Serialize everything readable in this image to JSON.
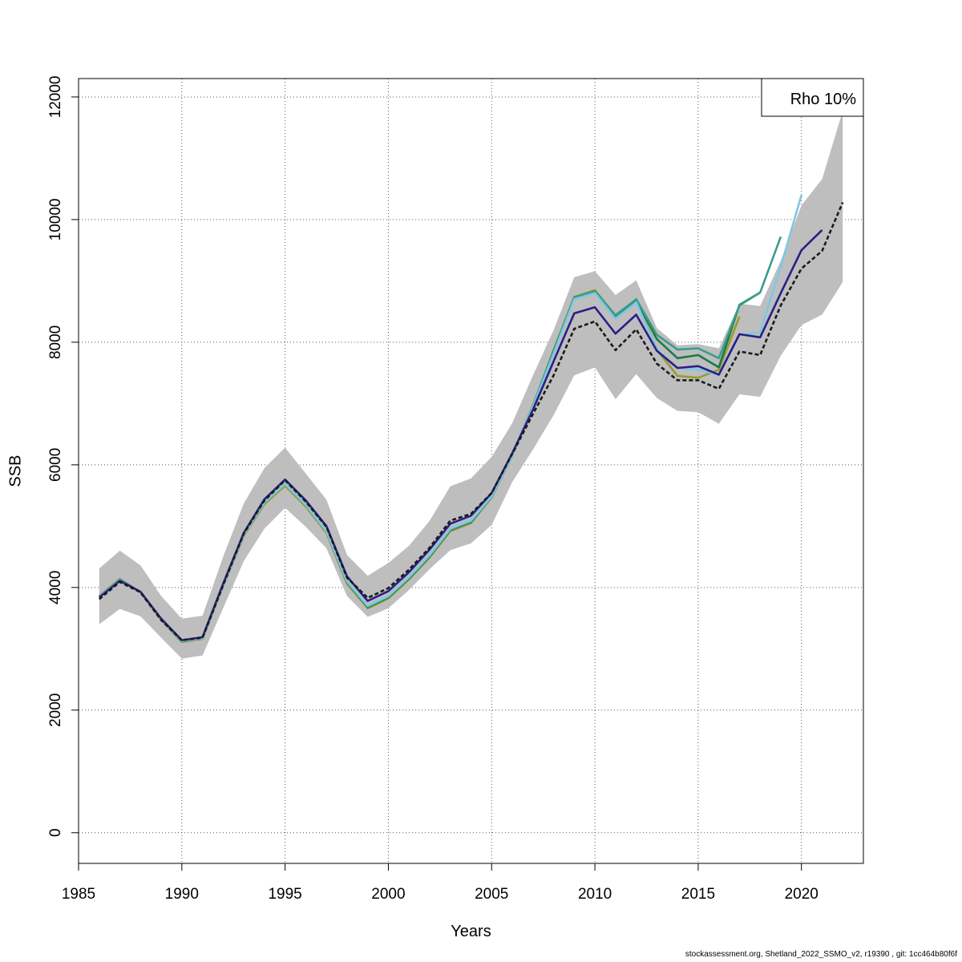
{
  "chart_data": {
    "type": "line",
    "title": "",
    "xlabel": "Years",
    "ylabel": "SSB",
    "xlim": [
      1985,
      2023
    ],
    "ylim": [
      -500,
      12300
    ],
    "xticks": [
      1985,
      1990,
      1995,
      2000,
      2005,
      2010,
      2015,
      2020
    ],
    "yticks": [
      0,
      2000,
      4000,
      6000,
      8000,
      10000,
      12000
    ],
    "grid": true,
    "legend": {
      "position": "top-right",
      "text": "Rho 10%"
    },
    "confidence_band": {
      "color": "#bebebe",
      "x": [
        1986,
        1987,
        1988,
        1989,
        1990,
        1991,
        1992,
        1993,
        1994,
        1995,
        1996,
        1997,
        1998,
        1999,
        2000,
        2001,
        2002,
        2003,
        2004,
        2005,
        2006,
        2007,
        2008,
        2009,
        2010,
        2011,
        2012,
        2013,
        2014,
        2015,
        2016,
        2017,
        2018,
        2019,
        2020,
        2021,
        2022
      ],
      "lower": [
        3400,
        3650,
        3530,
        3180,
        2840,
        2890,
        3660,
        4430,
        4960,
        5300,
        4990,
        4640,
        3860,
        3520,
        3660,
        3960,
        4300,
        4610,
        4720,
        5020,
        5720,
        6250,
        6810,
        7460,
        7590,
        7070,
        7480,
        7090,
        6880,
        6860,
        6670,
        7150,
        7110,
        7780,
        8280,
        8450,
        8980
      ],
      "upper": [
        4310,
        4600,
        4360,
        3860,
        3490,
        3540,
        4500,
        5370,
        5950,
        6280,
        5860,
        5430,
        4530,
        4190,
        4400,
        4680,
        5090,
        5650,
        5780,
        6130,
        6680,
        7460,
        8200,
        9060,
        9160,
        8770,
        9010,
        8230,
        7950,
        7970,
        7900,
        8630,
        8590,
        9330,
        10230,
        10660,
        11770
      ]
    },
    "series": [
      {
        "color": "#1a1a1a",
        "style": "dashed",
        "x": [
          1986,
          1987,
          1988,
          1989,
          1990,
          1991,
          1992,
          1993,
          1994,
          1995,
          1996,
          1997,
          1998,
          1999,
          2000,
          2001,
          2002,
          2003,
          2004,
          2005,
          2006,
          2007,
          2008,
          2009,
          2010,
          2011,
          2012,
          2013,
          2014,
          2015,
          2016,
          2017,
          2018,
          2019,
          2020,
          2021,
          2022
        ],
        "values": [
          3810,
          4090,
          3920,
          3470,
          3140,
          3180,
          4040,
          4880,
          5420,
          5750,
          5400,
          4990,
          4160,
          3830,
          3990,
          4290,
          4650,
          5090,
          5200,
          5540,
          6180,
          6830,
          7460,
          8220,
          8340,
          7870,
          8210,
          7650,
          7380,
          7380,
          7240,
          7850,
          7790,
          8600,
          9200,
          9490,
          10280
        ]
      },
      {
        "color": "#2a1f86",
        "style": "solid",
        "x": [
          1986,
          1987,
          1988,
          1989,
          1990,
          1991,
          1992,
          1993,
          1994,
          1995,
          1996,
          1997,
          1998,
          1999,
          2000,
          2001,
          2002,
          2003,
          2004,
          2005,
          2006,
          2007,
          2008,
          2009,
          2010,
          2011,
          2012,
          2013,
          2014,
          2015,
          2016,
          2017,
          2018,
          2019,
          2020,
          2021
        ],
        "values": [
          3840,
          4110,
          3930,
          3490,
          3140,
          3190,
          4060,
          4890,
          5440,
          5760,
          5420,
          5000,
          4180,
          3780,
          3940,
          4250,
          4620,
          5040,
          5170,
          5540,
          6190,
          6900,
          7690,
          8470,
          8570,
          8140,
          8450,
          7860,
          7580,
          7610,
          7470,
          8130,
          8080,
          8800,
          9500,
          9830
        ]
      },
      {
        "color": "#7ec8e3",
        "style": "solid",
        "x": [
          1986,
          1987,
          1988,
          1989,
          1990,
          1991,
          1992,
          1993,
          1994,
          1995,
          1996,
          1997,
          1998,
          1999,
          2000,
          2001,
          2002,
          2003,
          2004,
          2005,
          2006,
          2007,
          2008,
          2009,
          2010,
          2011,
          2012,
          2013,
          2014,
          2015,
          2016,
          2017,
          2018,
          2019,
          2020
        ],
        "values": [
          3850,
          4120,
          3920,
          3480,
          3130,
          3170,
          4030,
          4860,
          5390,
          5690,
          5350,
          4920,
          4100,
          3700,
          3860,
          4170,
          4530,
          4960,
          5090,
          5490,
          6150,
          6950,
          7810,
          8700,
          8800,
          8380,
          8650,
          7880,
          7580,
          7550,
          7470,
          8120,
          8160,
          9230,
          10400
        ]
      },
      {
        "color": "#3a9c8c",
        "style": "solid",
        "x": [
          1986,
          1987,
          1988,
          1989,
          1990,
          1991,
          1992,
          1993,
          1994,
          1995,
          1996,
          1997,
          1998,
          1999,
          2000,
          2001,
          2002,
          2003,
          2004,
          2005,
          2006,
          2007,
          2008,
          2009,
          2010,
          2011,
          2012,
          2013,
          2014,
          2015,
          2016,
          2017,
          2018,
          2019
        ],
        "values": [
          3850,
          4130,
          3920,
          3480,
          3120,
          3170,
          4030,
          4860,
          5390,
          5690,
          5350,
          4920,
          4100,
          3690,
          3850,
          4160,
          4520,
          4950,
          5080,
          5480,
          6150,
          6960,
          7850,
          8730,
          8830,
          8440,
          8700,
          8120,
          7880,
          7900,
          7740,
          8600,
          8810,
          9720
        ]
      },
      {
        "color": "#1b7a4a",
        "style": "solid",
        "x": [
          1986,
          1987,
          1988,
          1989,
          1990,
          1991,
          1992,
          1993,
          1994,
          1995,
          1996,
          1997,
          1998,
          1999,
          2000,
          2001,
          2002,
          2003,
          2004,
          2005,
          2006,
          2007,
          2008,
          2009,
          2010,
          2011,
          2012,
          2013,
          2014,
          2015,
          2016,
          2017,
          2018
        ],
        "values": [
          3850,
          4130,
          3920,
          3480,
          3120,
          3170,
          4030,
          4860,
          5390,
          5690,
          5350,
          4920,
          4090,
          3680,
          3840,
          4150,
          4510,
          4940,
          5070,
          5480,
          6150,
          6960,
          7860,
          8730,
          8830,
          8430,
          8690,
          8050,
          7740,
          7790,
          7590,
          8610,
          8810
        ]
      },
      {
        "color": "#9a9a30",
        "style": "solid",
        "x": [
          1986,
          1987,
          1988,
          1989,
          1990,
          1991,
          1992,
          1993,
          1994,
          1995,
          1996,
          1997,
          1998,
          1999,
          2000,
          2001,
          2002,
          2003,
          2004,
          2005,
          2006,
          2007,
          2008,
          2009,
          2010,
          2011,
          2012,
          2013,
          2014,
          2015,
          2016,
          2017
        ],
        "values": [
          3860,
          4140,
          3920,
          3470,
          3110,
          3160,
          4020,
          4840,
          5360,
          5660,
          5320,
          4890,
          4060,
          3660,
          3820,
          4130,
          4490,
          4920,
          5050,
          5470,
          6150,
          6970,
          7870,
          8740,
          8850,
          8430,
          8700,
          7880,
          7450,
          7420,
          7550,
          8420
        ]
      }
    ]
  },
  "footer": "stockassessment.org, Shetland_2022_SSMO_v2, r19390 , git: 1cc464b80f6f"
}
